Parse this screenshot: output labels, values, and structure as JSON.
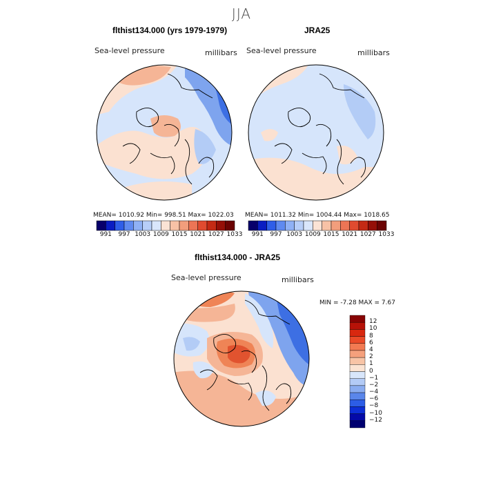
{
  "figure_title": "JJA",
  "panels": [
    {
      "title": "flthist134.000 (yrs 1979-1979)",
      "left_label": "Sea-level pressure",
      "right_label": "millibars",
      "stats": "MEAN= 1010.92   Min=  998.51   Max= 1022.03"
    },
    {
      "title": "JRA25",
      "left_label": "Sea-level pressure",
      "right_label": "millibars",
      "stats": "MEAN= 1011.32   Min= 1004.44   Max= 1018.65"
    },
    {
      "title": "flthist134.000 - JRA25",
      "left_label": "Sea-level pressure",
      "right_label": "millibars",
      "stats": "MIN =   -7.28  MAX =    7.67"
    }
  ],
  "abs_colorbar": {
    "labels": [
      "991",
      "997",
      "1003",
      "1009",
      "1015",
      "1021",
      "1027",
      "1033"
    ],
    "colors": [
      "#08006b",
      "#0a1dc2",
      "#2f5ee8",
      "#5f8af0",
      "#8fb1f5",
      "#b7cef8",
      "#d9e6fb",
      "#fbe3d5",
      "#f7c2a6",
      "#f29e7c",
      "#ec7555",
      "#e04b2f",
      "#c42a14",
      "#950f07",
      "#6b0303"
    ]
  },
  "diff_colorbar": {
    "labels": [
      "12",
      "10",
      "8",
      "6",
      "4",
      "2",
      "1",
      "0",
      "−1",
      "−2",
      "−4",
      "−6",
      "−8",
      "−10",
      "−12"
    ],
    "colors": [
      "#880404",
      "#b71208",
      "#d8280f",
      "#ea4a28",
      "#f27a52",
      "#f5a07c",
      "#f8c4a6",
      "#fbe3d2",
      "#d8e6fb",
      "#b3cbf6",
      "#8aacf0",
      "#5a86ea",
      "#2c5de6",
      "#0d2fd6",
      "#040aa8",
      "#000070"
    ]
  },
  "map_colors": {
    "ocean_light": "#d6e5fb",
    "ocean_mid": "#b3ccf6",
    "blue_mid": "#7ea4ee",
    "blue_deep": "#3d6fe3",
    "pink_light": "#fbe1d1",
    "salmon": "#f5b596",
    "orange": "#ef8456",
    "red": "#e1532f",
    "coast": "#000000"
  }
}
